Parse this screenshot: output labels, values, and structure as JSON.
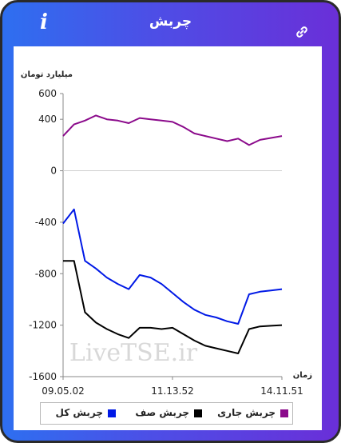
{
  "header": {
    "title": "چربش",
    "info_icon": "info-icon",
    "link_icon": "link-icon"
  },
  "chart_data": {
    "type": "line",
    "title": "چربش",
    "ylabel": "میلیارد تومان",
    "xlabel": "زمان",
    "ylim": [
      -1600,
      600
    ],
    "yticks": [
      600,
      400,
      0,
      -400,
      -800,
      -1200,
      -1600
    ],
    "ytick_labels": [
      "600",
      "400",
      "0",
      "-400",
      "-800",
      "-1200",
      "-1600"
    ],
    "xticks": [
      "09.05.02",
      "11.13.52",
      "14.11.51"
    ],
    "legend_position": "bottom",
    "watermark": "LiveTSE.ir",
    "x": [
      0,
      5,
      10,
      15,
      20,
      25,
      30,
      35,
      40,
      45,
      50,
      55,
      60,
      65,
      70,
      75,
      80,
      85,
      90,
      95,
      100
    ],
    "series": [
      {
        "name": "چربش جاری",
        "color": "#8b0a8b",
        "values": [
          270,
          360,
          390,
          430,
          400,
          390,
          370,
          410,
          400,
          390,
          380,
          340,
          290,
          270,
          250,
          230,
          250,
          200,
          240,
          255,
          270
        ]
      },
      {
        "name": "چربش کل",
        "color": "#0019e6",
        "values": [
          -410,
          -300,
          -700,
          -760,
          -830,
          -880,
          -920,
          -810,
          -830,
          -880,
          -950,
          -1020,
          -1080,
          -1120,
          -1140,
          -1170,
          -1190,
          -960,
          -940,
          -930,
          -920
        ]
      },
      {
        "name": "چربش صف",
        "color": "#000000",
        "values": [
          -700,
          -700,
          -1100,
          -1180,
          -1230,
          -1270,
          -1300,
          -1220,
          -1220,
          -1230,
          -1220,
          -1270,
          -1320,
          -1360,
          -1380,
          -1400,
          -1420,
          -1230,
          -1210,
          -1205,
          -1200
        ]
      }
    ],
    "grid": false
  },
  "legend": {
    "items": [
      {
        "label": "چربش جاری",
        "color": "#8b0a8b"
      },
      {
        "label": "چربش صف",
        "color": "#000000"
      },
      {
        "label": "چربش کل",
        "color": "#0019e6"
      }
    ]
  }
}
